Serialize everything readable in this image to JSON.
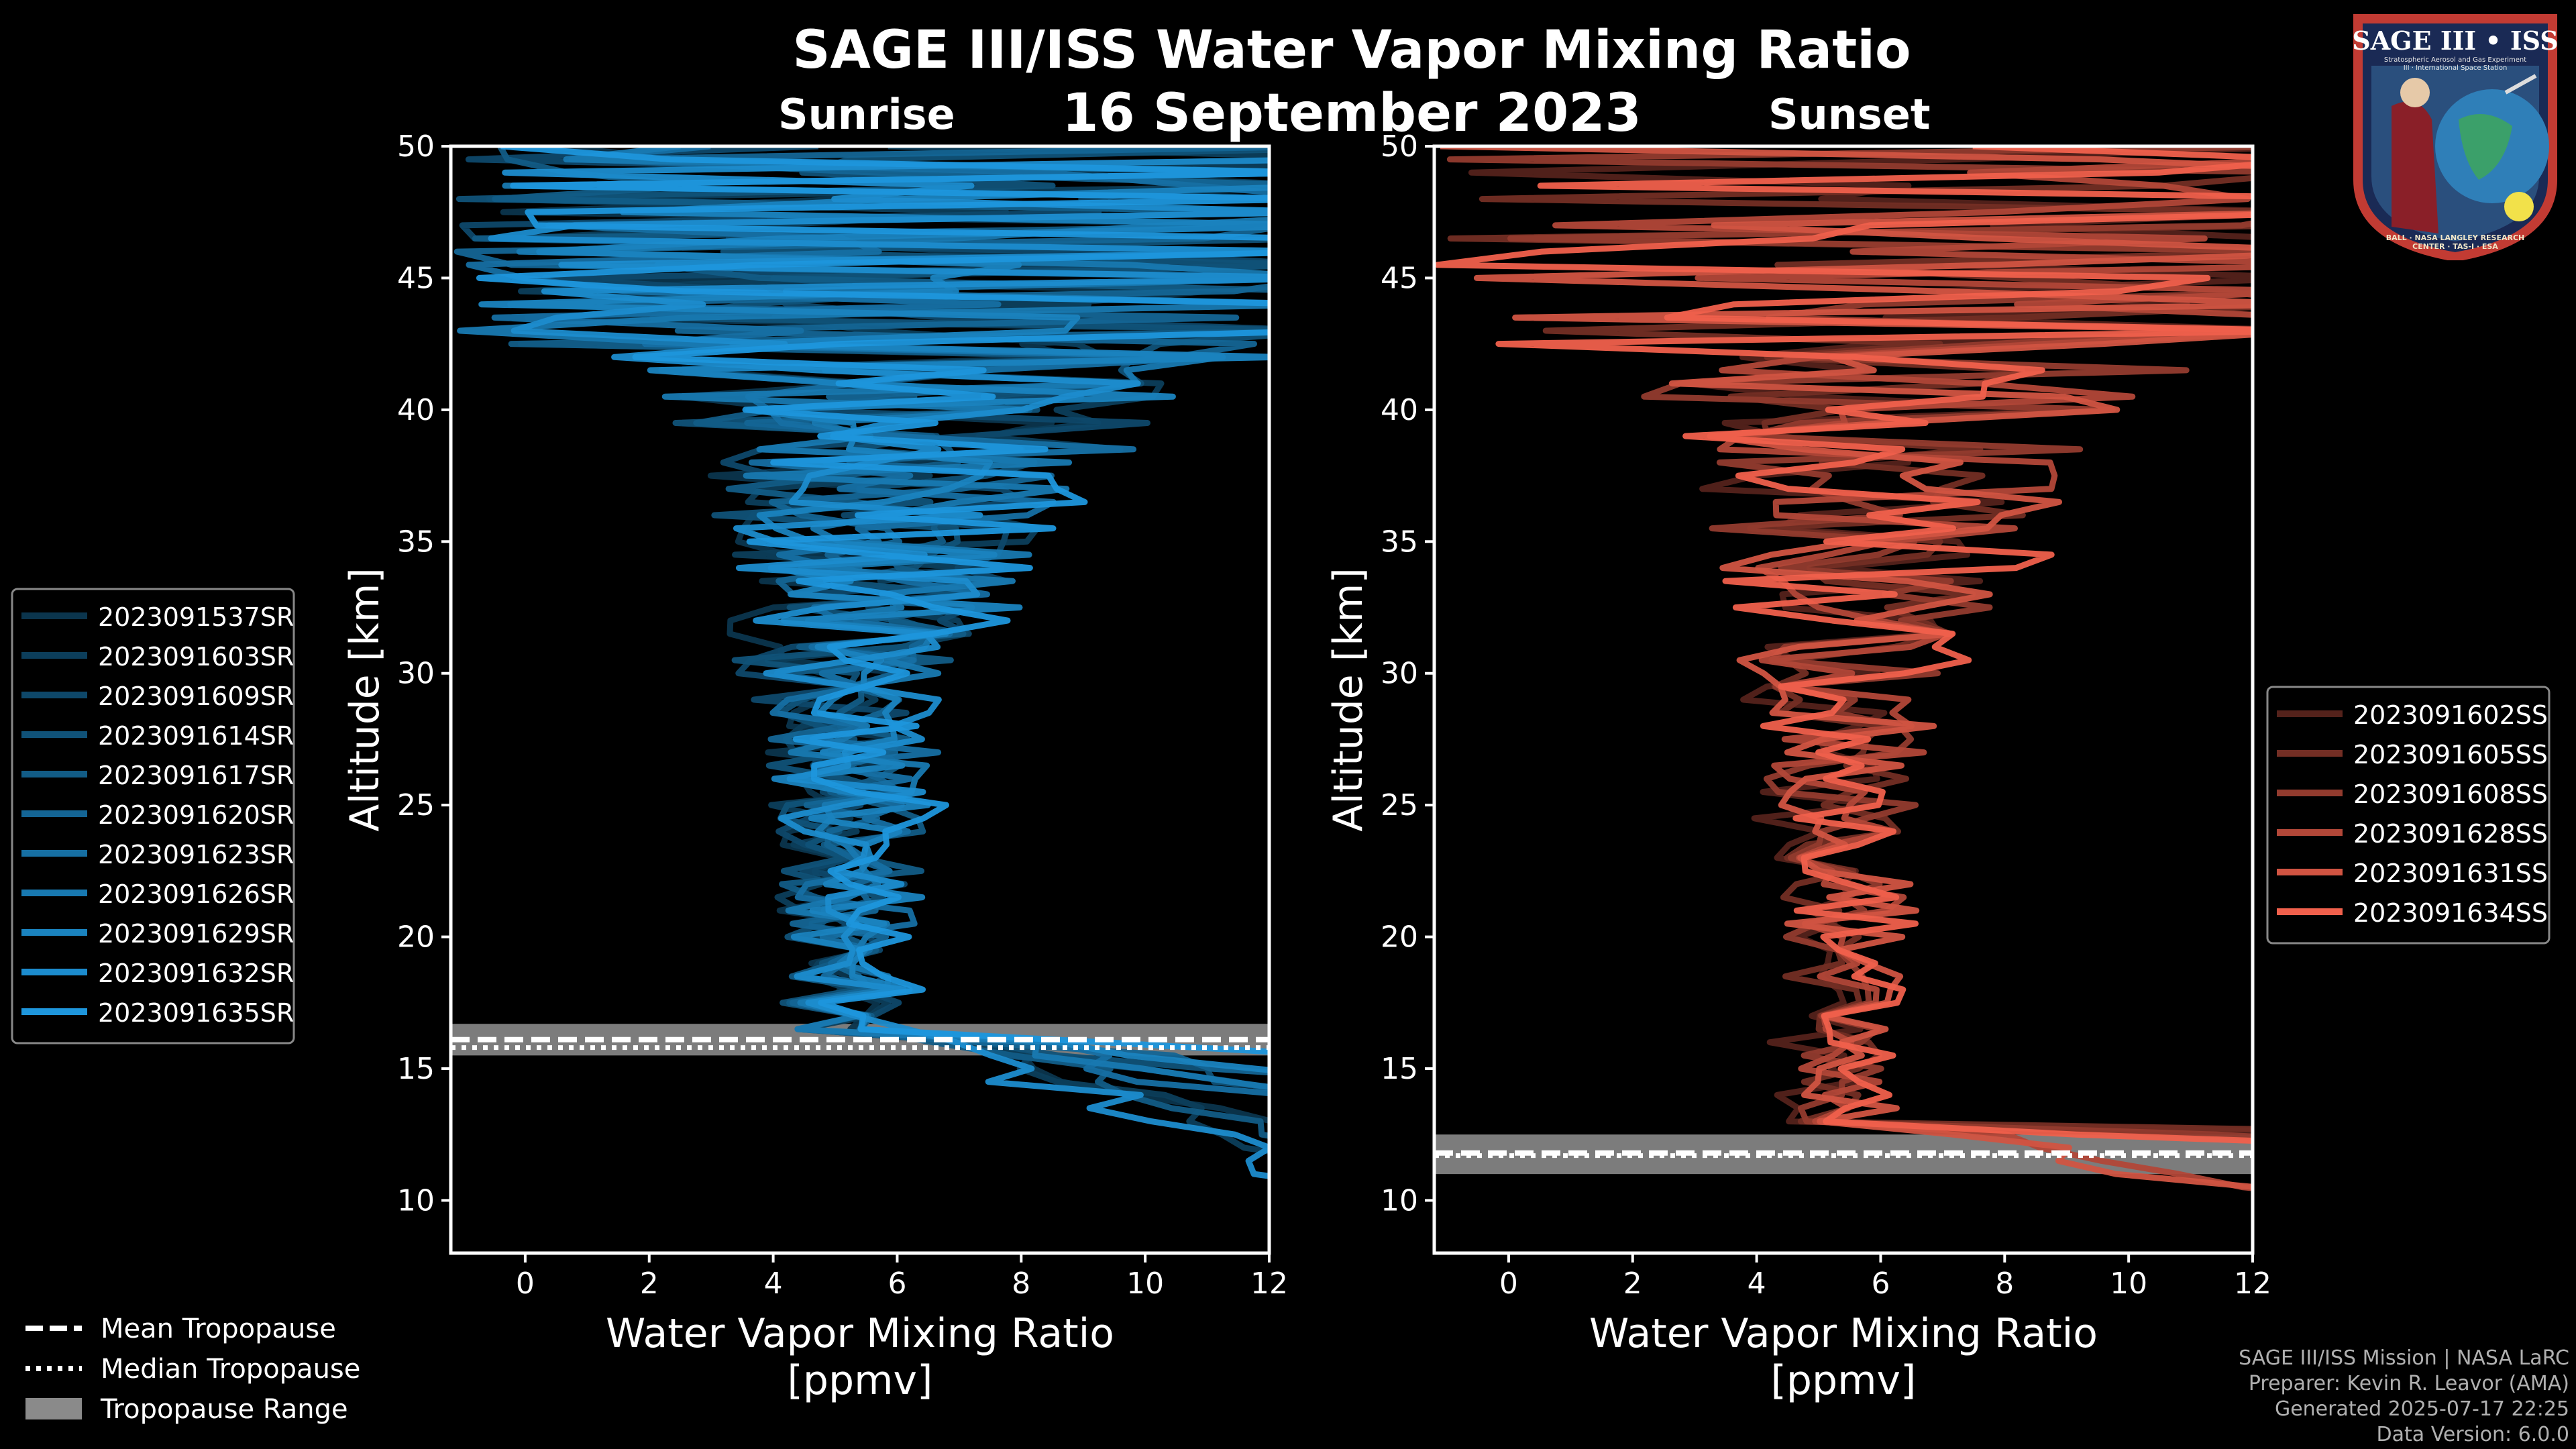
{
  "title": {
    "main": "SAGE III/ISS Water Vapor Mixing Ratio",
    "date": "16 September 2023",
    "left_panel": "Sunrise",
    "right_panel": "Sunset"
  },
  "logo": {
    "text": "SAGE III • ISS",
    "subtext": "Stratospheric Aerosol and Gas Experiment III · International Space Station",
    "ring": "BALL · NASA LANGLEY RESEARCH CENTER · TAS-I · ESA"
  },
  "footer": {
    "line1": "SAGE III/ISS Mission | NASA LaRC",
    "line2": "Preparer: Kevin R. Leavor (AMA)",
    "line3": "Generated 2025-07-17 22:25",
    "line4": "Data Version: 6.0.0"
  },
  "tropopause_legend": {
    "mean": "Mean Tropopause",
    "median": "Median Tropopause",
    "range": "Tropopause Range"
  },
  "colors": {
    "sunrise": "#1e96dc",
    "sunset": "#f0604c",
    "range_fill": "#8a8a8a",
    "axis": "#ffffff"
  },
  "chart_data": [
    {
      "type": "line",
      "panel": "Sunrise",
      "xlabel": "Water Vapor Mixing Ratio\n[ppmv]",
      "ylabel": "Altitude [km]",
      "xlim": [
        -1.2,
        12
      ],
      "ylim": [
        8,
        50
      ],
      "xticks": [
        0,
        2,
        4,
        6,
        8,
        10,
        12
      ],
      "yticks": [
        10,
        15,
        20,
        25,
        30,
        35,
        40,
        45,
        50
      ],
      "tropopause": {
        "mean": 16.1,
        "median": 15.8,
        "range": [
          15.5,
          16.7
        ]
      },
      "series": [
        {
          "name": "2023091537SR",
          "center": 4.9,
          "base": 11.5,
          "spread": 1.0
        },
        {
          "name": "2023091603SR",
          "center": 5.0,
          "base": 10.0,
          "spread": 1.05
        },
        {
          "name": "2023091609SR",
          "center": 5.1,
          "base": 12.8,
          "spread": 1.1
        },
        {
          "name": "2023091614SR",
          "center": 5.0,
          "base": 13.5,
          "spread": 1.0
        },
        {
          "name": "2023091617SR",
          "center": 5.2,
          "base": 11.0,
          "spread": 1.15
        },
        {
          "name": "2023091620SR",
          "center": 5.1,
          "base": 14.2,
          "spread": 1.0
        },
        {
          "name": "2023091623SR",
          "center": 5.3,
          "base": 12.5,
          "spread": 1.1
        },
        {
          "name": "2023091626SR",
          "center": 5.2,
          "base": 13.2,
          "spread": 1.05
        },
        {
          "name": "2023091629SR",
          "center": 5.4,
          "base": 14.0,
          "spread": 1.2
        },
        {
          "name": "2023091632SR",
          "center": 5.3,
          "base": 8.1,
          "spread": 1.1
        },
        {
          "name": "2023091635SR",
          "center": 5.5,
          "base": 15.0,
          "spread": 1.15
        }
      ]
    },
    {
      "type": "line",
      "panel": "Sunset",
      "xlabel": "Water Vapor Mixing Ratio\n[ppmv]",
      "ylabel": "Altitude [km]",
      "xlim": [
        -1.2,
        12
      ],
      "ylim": [
        8,
        50
      ],
      "xticks": [
        0,
        2,
        4,
        6,
        8,
        10,
        12
      ],
      "yticks": [
        10,
        15,
        20,
        25,
        30,
        35,
        40,
        45,
        50
      ],
      "tropopause": {
        "mean": 11.8,
        "median": 11.7,
        "range": [
          11.0,
          12.5
        ]
      },
      "series": [
        {
          "name": "2023091602SS",
          "center": 5.0,
          "base": 12.9,
          "spread": 1.0
        },
        {
          "name": "2023091605SS",
          "center": 5.2,
          "base": 12.6,
          "spread": 1.05
        },
        {
          "name": "2023091608SS",
          "center": 5.3,
          "base": 12.3,
          "spread": 1.1
        },
        {
          "name": "2023091628SS",
          "center": 5.4,
          "base": 9.2,
          "spread": 1.05
        },
        {
          "name": "2023091631SS",
          "center": 5.5,
          "base": 8.5,
          "spread": 1.15
        },
        {
          "name": "2023091634SS",
          "center": 5.6,
          "base": 12.0,
          "spread": 1.2
        }
      ]
    }
  ]
}
